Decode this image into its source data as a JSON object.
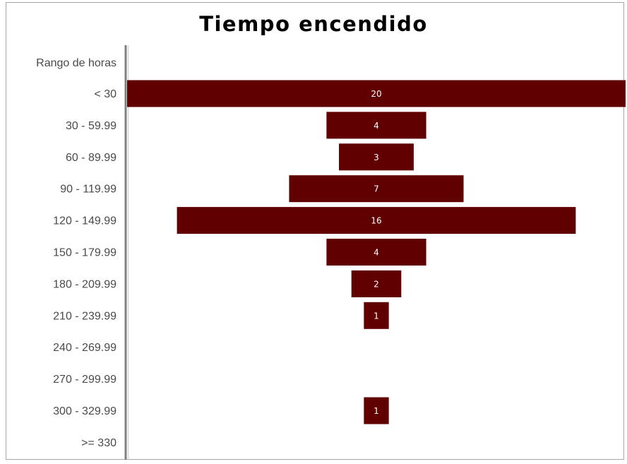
{
  "chart_data": {
    "type": "bar",
    "orientation": "horizontal-centered",
    "title": "Tiempo encendido",
    "header_label": "Rango de horas",
    "categories": [
      "< 30",
      "30 - 59.99",
      "60 - 89.99",
      "90 - 119.99",
      "120 - 149.99",
      "150 - 179.99",
      "180 - 209.99",
      "210 - 239.99",
      "240 - 269.99",
      "270 - 299.99",
      "300 - 329.99",
      ">= 330"
    ],
    "values": [
      20,
      4,
      3,
      7,
      16,
      4,
      2,
      1,
      0,
      0,
      1,
      0
    ],
    "data_labels": [
      "20",
      "4",
      "3",
      "7",
      "16",
      "4",
      "2",
      "1",
      "",
      "",
      "1",
      ""
    ],
    "xlim": [
      0,
      20
    ],
    "grid": false,
    "legend": "none",
    "bar_color": "#600000",
    "label_color": "#ffffff"
  }
}
